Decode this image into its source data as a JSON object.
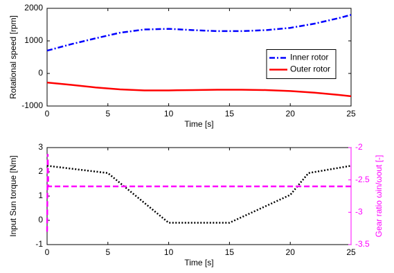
{
  "chart_data": [
    {
      "type": "line",
      "xlabel": "Time [s]",
      "ylabel": "Rotational speed [rpm]",
      "x": [
        0,
        2,
        4,
        6,
        8,
        10,
        12,
        14,
        16,
        18,
        20,
        22,
        24,
        25
      ],
      "xlim": [
        0,
        25
      ],
      "xticks": [
        0,
        5,
        10,
        15,
        20,
        25
      ],
      "ylim": [
        -1000,
        2000
      ],
      "yticks": [
        -1000,
        0,
        1000,
        2000
      ],
      "legend": "right",
      "series": [
        {
          "name": "Inner rotor",
          "color": "#0000ff",
          "linestyle": "dashdot",
          "values": [
            700,
            900,
            1080,
            1250,
            1350,
            1370,
            1330,
            1300,
            1300,
            1330,
            1400,
            1530,
            1700,
            1800
          ]
        },
        {
          "name": "Outer rotor",
          "color": "#ff0000",
          "linestyle": "solid",
          "values": [
            -280,
            -350,
            -430,
            -490,
            -520,
            -520,
            -510,
            -500,
            -500,
            -510,
            -540,
            -590,
            -660,
            -700
          ]
        }
      ]
    },
    {
      "type": "line",
      "xlabel": "Time [s]",
      "ylabel": "Input Sun torque [Nm]",
      "y2label": "Gear ratio ωin/ωout [-]",
      "xlim": [
        0,
        25
      ],
      "xticks": [
        0,
        5,
        10,
        15,
        20,
        25
      ],
      "ylim": [
        -1,
        3
      ],
      "yticks": [
        -1,
        0,
        1,
        2,
        3
      ],
      "y2lim": [
        -3.5,
        -2
      ],
      "y2ticks": [
        -3.5,
        -3,
        -2.5,
        -2
      ],
      "y2color": "#ff00ff",
      "series": [
        {
          "color": "#000000",
          "linestyle": "dotted",
          "x": [
            0,
            5,
            10,
            15,
            20,
            21.5,
            25
          ],
          "values": [
            2.25,
            1.95,
            -0.1,
            -0.1,
            1.05,
            1.95,
            2.25
          ]
        },
        {
          "color": "#ff00ff",
          "linestyle": "dashed",
          "axis": "y2",
          "x": [
            0,
            0.05,
            0.1,
            25
          ],
          "values": [
            -3.3,
            -2.1,
            -2.6,
            -2.6
          ]
        }
      ]
    }
  ]
}
